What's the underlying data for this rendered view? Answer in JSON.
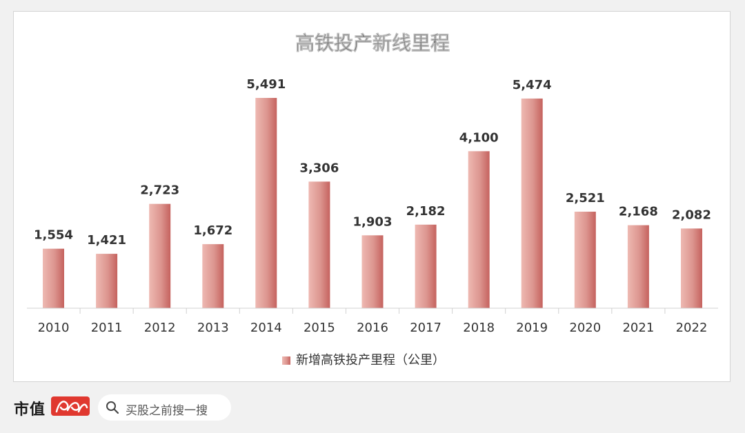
{
  "chart_data": {
    "type": "bar",
    "title": "高铁投产新线里程",
    "categories": [
      "2010",
      "2011",
      "2012",
      "2013",
      "2014",
      "2015",
      "2016",
      "2017",
      "2018",
      "2019",
      "2020",
      "2021",
      "2022"
    ],
    "series": [
      {
        "name": "新增高铁投产里程（公里）",
        "values": [
          1554,
          1421,
          2723,
          1672,
          5491,
          3306,
          1903,
          2182,
          4100,
          5474,
          2521,
          2168,
          2082
        ],
        "labels": [
          "1,554",
          "1,421",
          "2,723",
          "1,672",
          "5,491",
          "3,306",
          "1,903",
          "2,182",
          "4,100",
          "5,474",
          "2,521",
          "2,168",
          "2,082"
        ]
      }
    ],
    "ylim": [
      0,
      6000
    ],
    "grid": false,
    "legend_position": "bottom",
    "colors": {
      "bar_light": "#eab2ab",
      "bar_dark": "#c96b66",
      "text": "#333333"
    }
  },
  "footer": {
    "brand_name": "市值",
    "brand_logo_icon": "fengyun-logo-icon",
    "search_placeholder": "买股之前搜一搜",
    "search_icon": "search-icon"
  }
}
